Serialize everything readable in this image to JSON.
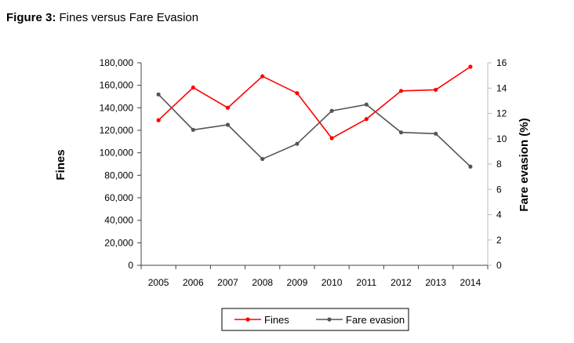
{
  "figure_label": "Figure 3:",
  "chart_data": {
    "type": "line",
    "title": "Fines versus Fare Evasion",
    "categories": [
      "2005",
      "2006",
      "2007",
      "2008",
      "2009",
      "2010",
      "2011",
      "2012",
      "2013",
      "2014"
    ],
    "series": [
      {
        "name": "Fines",
        "axis": "left",
        "color": "#ff0000",
        "values": [
          129000,
          158000,
          140000,
          168000,
          153000,
          113000,
          130000,
          155000,
          156000,
          176500
        ]
      },
      {
        "name": "Fare evasion",
        "axis": "right",
        "color": "#555555",
        "values": [
          13.5,
          10.7,
          11.1,
          8.4,
          9.6,
          12.2,
          12.7,
          10.5,
          10.4,
          7.8
        ]
      }
    ],
    "ylabel": "Fines",
    "y2label": "Fare evasion (%)",
    "ylim": [
      0,
      180000
    ],
    "y2lim": [
      0,
      16
    ],
    "yticks": [
      "0",
      "20,000",
      "40,000",
      "60,000",
      "80,000",
      "100,000",
      "120,000",
      "140,000",
      "160,000",
      "180,000"
    ],
    "y2ticks": [
      "0",
      "2",
      "4",
      "6",
      "8",
      "10",
      "12",
      "14",
      "16"
    ],
    "grid": false,
    "legend": "bottom"
  }
}
